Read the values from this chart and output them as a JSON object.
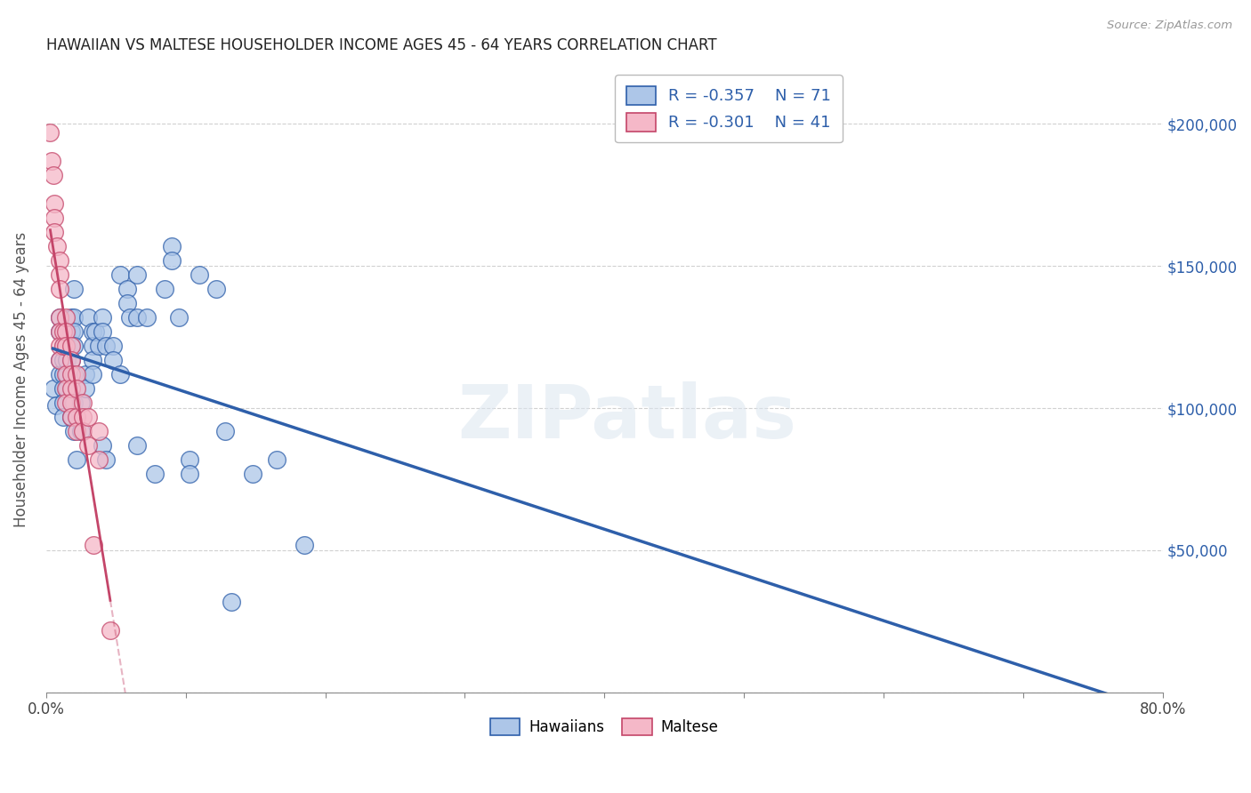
{
  "title": "HAWAIIAN VS MALTESE HOUSEHOLDER INCOME AGES 45 - 64 YEARS CORRELATION CHART",
  "source": "Source: ZipAtlas.com",
  "ylabel": "Householder Income Ages 45 - 64 years",
  "xlim": [
    0.0,
    0.8
  ],
  "ylim": [
    0,
    220000
  ],
  "yticks": [
    0,
    50000,
    100000,
    150000,
    200000
  ],
  "xticks": [
    0.0,
    0.1,
    0.2,
    0.3,
    0.4,
    0.5,
    0.6,
    0.7,
    0.8
  ],
  "xtick_labels": [
    "0.0%",
    "",
    "",
    "",
    "",
    "",
    "",
    "",
    "80.0%"
  ],
  "watermark": "ZIPatlas",
  "legend_r_hawaiian": "-0.357",
  "legend_n_hawaiian": "71",
  "legend_r_maltese": "-0.301",
  "legend_n_maltese": "41",
  "hawaiian_color": "#adc6e8",
  "maltese_color": "#f5b8c8",
  "hawaiian_line_color": "#2e5faa",
  "maltese_line_color": "#c44569",
  "background_color": "#ffffff",
  "grid_color": "#d0d0d0",
  "hawaiian_scatter": [
    [
      0.005,
      107000
    ],
    [
      0.007,
      101000
    ],
    [
      0.01,
      132000
    ],
    [
      0.01,
      127000
    ],
    [
      0.01,
      117000
    ],
    [
      0.01,
      112000
    ],
    [
      0.012,
      122000
    ],
    [
      0.012,
      117000
    ],
    [
      0.012,
      112000
    ],
    [
      0.012,
      107000
    ],
    [
      0.012,
      102000
    ],
    [
      0.012,
      97000
    ],
    [
      0.015,
      127000
    ],
    [
      0.015,
      122000
    ],
    [
      0.015,
      117000
    ],
    [
      0.015,
      112000
    ],
    [
      0.015,
      107000
    ],
    [
      0.018,
      132000
    ],
    [
      0.018,
      127000
    ],
    [
      0.018,
      122000
    ],
    [
      0.018,
      117000
    ],
    [
      0.018,
      97000
    ],
    [
      0.02,
      142000
    ],
    [
      0.02,
      132000
    ],
    [
      0.02,
      127000
    ],
    [
      0.02,
      122000
    ],
    [
      0.02,
      112000
    ],
    [
      0.02,
      102000
    ],
    [
      0.02,
      92000
    ],
    [
      0.022,
      82000
    ],
    [
      0.025,
      102000
    ],
    [
      0.025,
      92000
    ],
    [
      0.028,
      112000
    ],
    [
      0.028,
      107000
    ],
    [
      0.03,
      132000
    ],
    [
      0.033,
      127000
    ],
    [
      0.033,
      122000
    ],
    [
      0.033,
      117000
    ],
    [
      0.033,
      112000
    ],
    [
      0.035,
      127000
    ],
    [
      0.038,
      122000
    ],
    [
      0.04,
      132000
    ],
    [
      0.04,
      127000
    ],
    [
      0.04,
      87000
    ],
    [
      0.043,
      122000
    ],
    [
      0.043,
      82000
    ],
    [
      0.048,
      122000
    ],
    [
      0.048,
      117000
    ],
    [
      0.053,
      147000
    ],
    [
      0.053,
      112000
    ],
    [
      0.058,
      142000
    ],
    [
      0.058,
      137000
    ],
    [
      0.06,
      132000
    ],
    [
      0.065,
      147000
    ],
    [
      0.065,
      132000
    ],
    [
      0.065,
      87000
    ],
    [
      0.072,
      132000
    ],
    [
      0.078,
      77000
    ],
    [
      0.085,
      142000
    ],
    [
      0.09,
      157000
    ],
    [
      0.09,
      152000
    ],
    [
      0.095,
      132000
    ],
    [
      0.103,
      82000
    ],
    [
      0.103,
      77000
    ],
    [
      0.11,
      147000
    ],
    [
      0.122,
      142000
    ],
    [
      0.128,
      92000
    ],
    [
      0.133,
      32000
    ],
    [
      0.148,
      77000
    ],
    [
      0.165,
      82000
    ],
    [
      0.185,
      52000
    ]
  ],
  "maltese_scatter": [
    [
      0.003,
      197000
    ],
    [
      0.004,
      187000
    ],
    [
      0.005,
      182000
    ],
    [
      0.006,
      172000
    ],
    [
      0.006,
      167000
    ],
    [
      0.006,
      162000
    ],
    [
      0.008,
      157000
    ],
    [
      0.01,
      152000
    ],
    [
      0.01,
      147000
    ],
    [
      0.01,
      142000
    ],
    [
      0.01,
      132000
    ],
    [
      0.01,
      127000
    ],
    [
      0.01,
      122000
    ],
    [
      0.01,
      117000
    ],
    [
      0.012,
      127000
    ],
    [
      0.012,
      122000
    ],
    [
      0.014,
      132000
    ],
    [
      0.014,
      127000
    ],
    [
      0.014,
      122000
    ],
    [
      0.014,
      112000
    ],
    [
      0.014,
      107000
    ],
    [
      0.014,
      102000
    ],
    [
      0.018,
      122000
    ],
    [
      0.018,
      117000
    ],
    [
      0.018,
      112000
    ],
    [
      0.018,
      107000
    ],
    [
      0.018,
      102000
    ],
    [
      0.018,
      97000
    ],
    [
      0.022,
      112000
    ],
    [
      0.022,
      107000
    ],
    [
      0.022,
      97000
    ],
    [
      0.022,
      92000
    ],
    [
      0.026,
      102000
    ],
    [
      0.026,
      97000
    ],
    [
      0.026,
      92000
    ],
    [
      0.03,
      97000
    ],
    [
      0.03,
      87000
    ],
    [
      0.034,
      52000
    ],
    [
      0.038,
      92000
    ],
    [
      0.038,
      82000
    ],
    [
      0.046,
      22000
    ]
  ]
}
